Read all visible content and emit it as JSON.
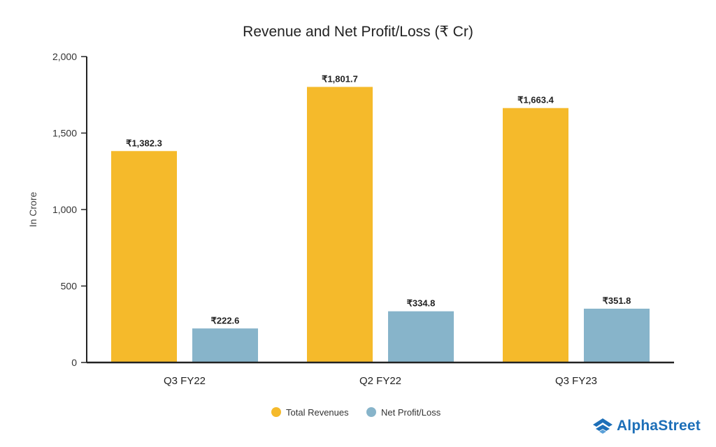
{
  "colors": {
    "revenue": "#F5BA2B",
    "profit": "#87B4CA",
    "axis": "#222222",
    "brand": "#1D6FB8"
  },
  "brand": {
    "name": "AlphaStreet",
    "icon": "alphastreet-logo-icon"
  },
  "chart_data": {
    "type": "bar",
    "title": "Revenue and Net Profit/Loss (₹ Cr)",
    "xlabel": "",
    "ylabel": "In Crore",
    "ylim": [
      0,
      2000
    ],
    "yticks": [
      0,
      500,
      1000,
      1500,
      2000
    ],
    "ytick_labels": [
      "0",
      "500",
      "1,000",
      "1,500",
      "2,000"
    ],
    "categories": [
      "Q3 FY22",
      "Q2 FY22",
      "Q3 FY23"
    ],
    "series": [
      {
        "name": "Total Revenues",
        "values": [
          1382.3,
          1801.7,
          1663.4
        ],
        "labels": [
          "₹1,382.3",
          "₹1,801.7",
          "₹1,663.4"
        ]
      },
      {
        "name": "Net Profit/Loss",
        "values": [
          222.6,
          334.8,
          351.8
        ],
        "labels": [
          "₹222.6",
          "₹334.8",
          "₹351.8"
        ]
      }
    ],
    "legend_position": "bottom-center"
  }
}
